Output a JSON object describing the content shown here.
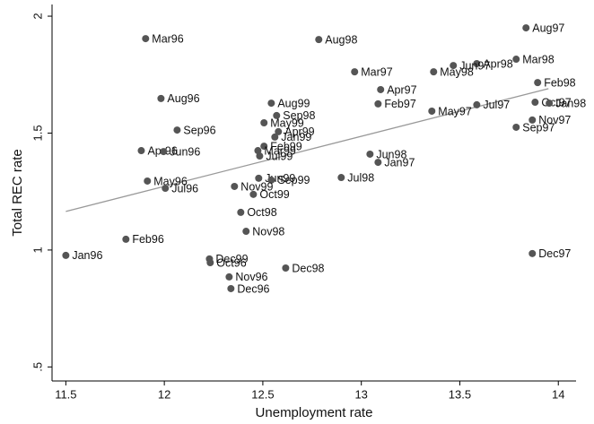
{
  "chart_data": {
    "type": "scatter",
    "x_label": "Unemployment rate",
    "y_label": "Total REC rate",
    "xlim": [
      11.43,
      14.09
    ],
    "ylim": [
      0.44,
      2.05
    ],
    "xticks": [
      11.5,
      12,
      12.5,
      13,
      13.5,
      14
    ],
    "yticks": [
      {
        "value": 0.5,
        "label": ".5"
      },
      1,
      1.5,
      2
    ],
    "color": "#555555",
    "fit_color": "#999999",
    "fit": {
      "x": [
        11.5,
        13.95
      ],
      "y": [
        1.165,
        1.69
      ]
    },
    "labels": [
      "Mar96",
      "Aug98",
      "Aug97",
      "Mar98",
      "Apr98",
      "Jun97",
      "May98",
      "Mar97",
      "Feb98",
      "Apr97",
      "Aug96",
      "Aug99",
      "Feb97",
      "Oct97",
      "Jan98",
      "Jul97",
      "May97",
      "Nov97",
      "Sep98",
      "May99",
      "Sep97",
      "Sep96",
      "Apr99",
      "Jan99",
      "Apr96",
      "Jun96",
      "Feb99",
      "Mar99",
      "Jul99",
      "Jun98",
      "Jan97",
      "Jul98",
      "Jun99",
      "Sep99",
      "May96",
      "Jul96",
      "Nov99",
      "Oct99",
      "Oct98",
      "Nov98",
      "Feb96",
      "Jan96",
      "Dec97",
      "Dec99",
      "Oct96",
      "Dec98",
      "Nov96",
      "Dec96"
    ],
    "x": [
      11.905,
      12.784,
      13.836,
      13.786,
      13.586,
      13.467,
      13.367,
      12.966,
      13.895,
      13.098,
      11.983,
      12.543,
      13.085,
      13.882,
      13.954,
      13.586,
      13.358,
      13.868,
      12.57,
      12.506,
      13.786,
      12.065,
      12.579,
      12.561,
      11.883,
      11.996,
      12.506,
      12.475,
      12.484,
      13.044,
      13.085,
      12.898,
      12.479,
      12.543,
      11.914,
      12.005,
      12.356,
      12.452,
      12.388,
      12.415,
      11.805,
      11.5,
      13.868,
      12.229,
      12.233,
      12.616,
      12.329,
      12.338
    ],
    "y": [
      1.904,
      1.9,
      1.95,
      1.816,
      1.797,
      1.789,
      1.762,
      1.762,
      1.716,
      1.686,
      1.648,
      1.628,
      1.625,
      1.632,
      1.628,
      1.621,
      1.594,
      1.556,
      1.575,
      1.544,
      1.525,
      1.513,
      1.506,
      1.483,
      1.425,
      1.421,
      1.444,
      1.425,
      1.402,
      1.41,
      1.375,
      1.31,
      1.307,
      1.299,
      1.295,
      1.264,
      1.272,
      1.238,
      1.161,
      1.08,
      1.046,
      0.977,
      0.985,
      0.962,
      0.946,
      0.923,
      0.885,
      0.835
    ]
  }
}
